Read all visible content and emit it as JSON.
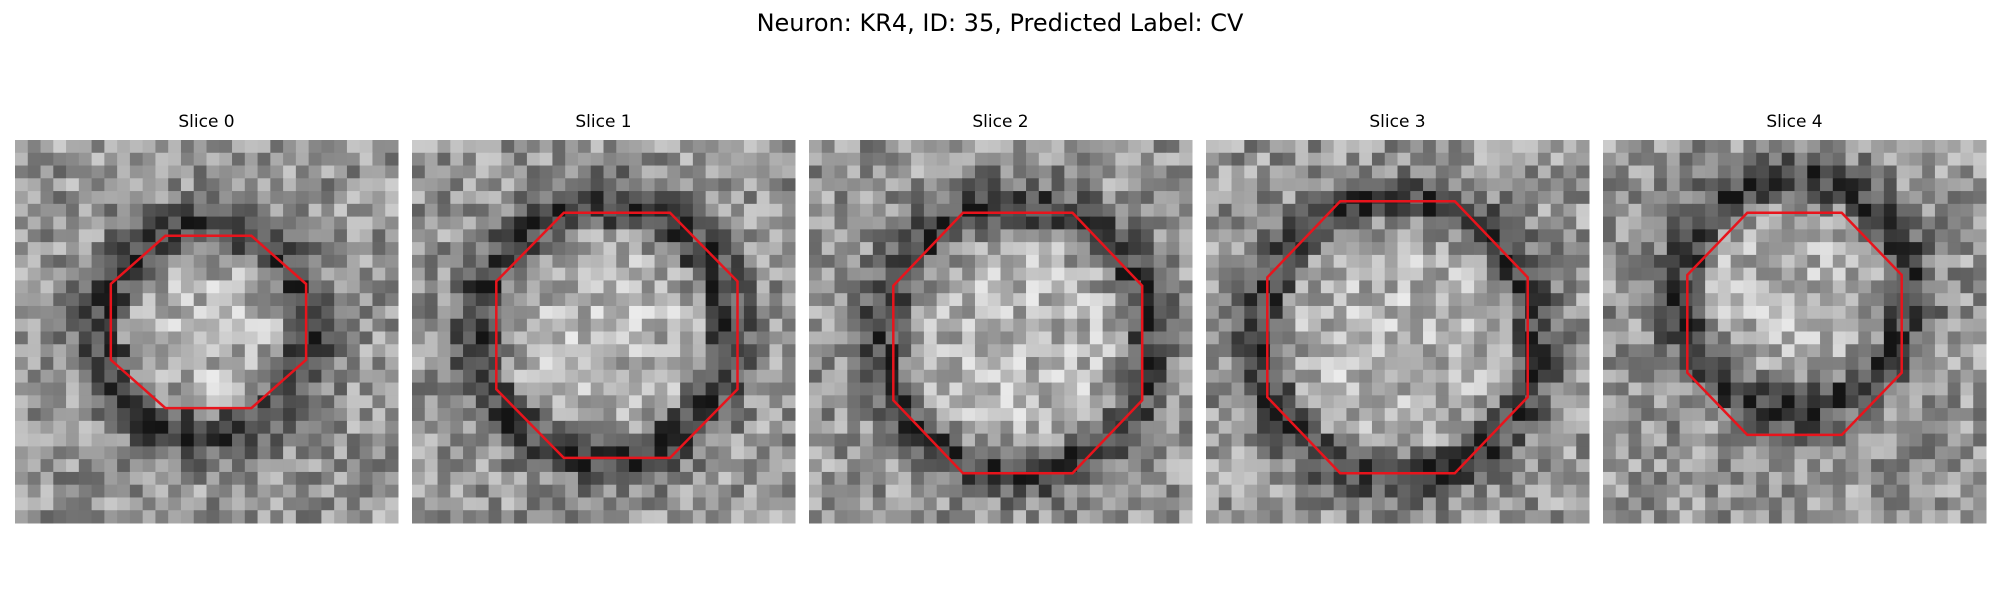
{
  "title": "Neuron: KR4, ID: 35, Predicted Label: CV",
  "panels": [
    {
      "title": "Slice 0"
    },
    {
      "title": "Slice 1"
    },
    {
      "title": "Slice 2"
    },
    {
      "title": "Slice 3"
    },
    {
      "title": "Slice 4"
    }
  ]
}
